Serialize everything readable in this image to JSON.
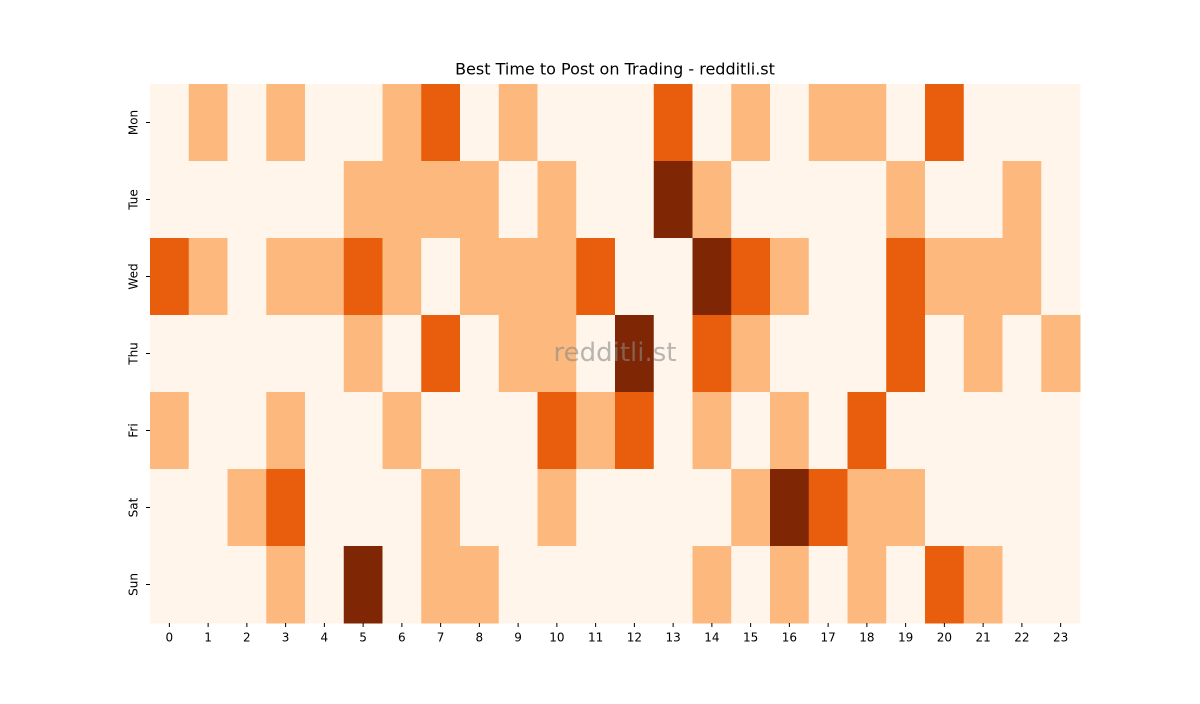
{
  "chart_data": {
    "type": "heatmap",
    "title": "Best Time to Post on Trading - redditli.st",
    "watermark": "redditli.st",
    "x": [
      "0",
      "1",
      "2",
      "3",
      "4",
      "5",
      "6",
      "7",
      "8",
      "9",
      "10",
      "11",
      "12",
      "13",
      "14",
      "15",
      "16",
      "17",
      "18",
      "19",
      "20",
      "21",
      "22",
      "23"
    ],
    "y": [
      "Mon",
      "Tue",
      "Wed",
      "Thu",
      "Fri",
      "Sat",
      "Sun"
    ],
    "colors": [
      "#fff5eb",
      "#fdb97d",
      "#e95e0d",
      "#7f2704"
    ],
    "z": [
      [
        0,
        1,
        0,
        1,
        0,
        0,
        1,
        2,
        0,
        1,
        0,
        0,
        0,
        2,
        0,
        1,
        0,
        1,
        1,
        0,
        2,
        0,
        0,
        0
      ],
      [
        0,
        0,
        0,
        0,
        0,
        1,
        1,
        1,
        1,
        0,
        1,
        0,
        0,
        3,
        1,
        0,
        0,
        0,
        0,
        1,
        0,
        0,
        1,
        0
      ],
      [
        2,
        1,
        0,
        1,
        1,
        2,
        1,
        0,
        1,
        1,
        1,
        2,
        0,
        0,
        3,
        2,
        1,
        0,
        0,
        2,
        1,
        1,
        1,
        0
      ],
      [
        0,
        0,
        0,
        0,
        0,
        1,
        0,
        2,
        0,
        1,
        1,
        0,
        3,
        0,
        2,
        1,
        0,
        0,
        0,
        2,
        0,
        1,
        0,
        1
      ],
      [
        1,
        0,
        0,
        1,
        0,
        0,
        1,
        0,
        0,
        0,
        2,
        1,
        2,
        0,
        1,
        0,
        1,
        0,
        2,
        0,
        0,
        0,
        0,
        0
      ],
      [
        0,
        0,
        1,
        2,
        0,
        0,
        0,
        1,
        0,
        0,
        1,
        0,
        0,
        0,
        0,
        1,
        3,
        2,
        1,
        1,
        0,
        0,
        0,
        0
      ],
      [
        0,
        0,
        0,
        1,
        0,
        3,
        0,
        1,
        1,
        0,
        0,
        0,
        0,
        0,
        1,
        0,
        1,
        0,
        1,
        0,
        2,
        1,
        0,
        0
      ]
    ]
  }
}
